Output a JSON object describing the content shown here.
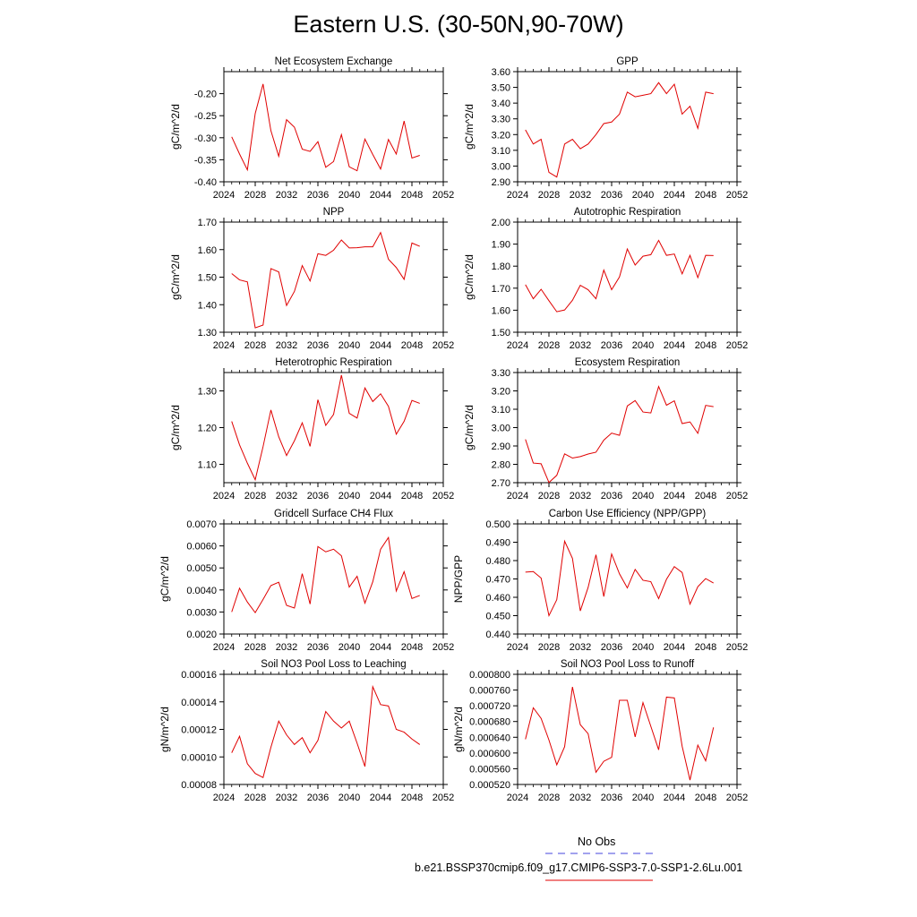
{
  "title": "Eastern U.S. (30-50N,90-70W)",
  "legend": {
    "obs_label": "No Obs",
    "obs_color": "#4444dd",
    "model_label": "b.e21.BSSP370cmip6.f09_g17.CMIP6-SSP3-7.0-SSP1-2.6Lu.001",
    "model_color": "#e00000"
  },
  "chart_data": [
    {
      "type": "line",
      "title": "Net Ecosystem Exchange",
      "ylabel": "gC/m^2/d",
      "xlim": [
        2024,
        2052
      ],
      "xticks": [
        2024,
        2028,
        2032,
        2036,
        2040,
        2044,
        2048,
        2052
      ],
      "ylim": [
        -0.4,
        -0.15
      ],
      "yticks": [
        -0.4,
        -0.35,
        -0.3,
        -0.25,
        -0.2
      ],
      "ytick_labels": [
        "-0.40",
        "-0.35",
        "-0.30",
        "-0.25",
        "-0.20"
      ],
      "x": [
        2025,
        2026,
        2027,
        2028,
        2029,
        2030,
        2031,
        2032,
        2033,
        2034,
        2035,
        2036,
        2037,
        2038,
        2039,
        2040,
        2041,
        2042,
        2043,
        2044,
        2045,
        2046,
        2047,
        2048,
        2049
      ],
      "y": [
        -0.298,
        -0.337,
        -0.373,
        -0.245,
        -0.178,
        -0.284,
        -0.342,
        -0.259,
        -0.276,
        -0.326,
        -0.331,
        -0.309,
        -0.367,
        -0.354,
        -0.293,
        -0.366,
        -0.375,
        -0.303,
        -0.338,
        -0.371,
        -0.304,
        -0.337,
        -0.262,
        -0.346,
        -0.34
      ]
    },
    {
      "type": "line",
      "title": "GPP",
      "ylabel": "gC/m^2/d",
      "xlim": [
        2024,
        2052
      ],
      "xticks": [
        2024,
        2028,
        2032,
        2036,
        2040,
        2044,
        2048,
        2052
      ],
      "ylim": [
        2.9,
        3.6
      ],
      "yticks": [
        2.9,
        3.0,
        3.1,
        3.2,
        3.3,
        3.4,
        3.5,
        3.6
      ],
      "ytick_labels": [
        "2.90",
        "3.00",
        "3.10",
        "3.20",
        "3.30",
        "3.40",
        "3.50",
        "3.60"
      ],
      "x": [
        2025,
        2026,
        2027,
        2028,
        2029,
        2030,
        2031,
        2032,
        2033,
        2034,
        2035,
        2036,
        2037,
        2038,
        2039,
        2040,
        2041,
        2042,
        2043,
        2044,
        2045,
        2046,
        2047,
        2048,
        2049
      ],
      "y": [
        3.23,
        3.14,
        3.17,
        2.96,
        2.93,
        3.14,
        3.17,
        3.11,
        3.14,
        3.2,
        3.27,
        3.28,
        3.33,
        3.47,
        3.44,
        3.45,
        3.46,
        3.53,
        3.46,
        3.52,
        3.33,
        3.38,
        3.24,
        3.47,
        3.46
      ]
    },
    {
      "type": "line",
      "title": "NPP",
      "ylabel": "gC/m^2/d",
      "xlim": [
        2024,
        2052
      ],
      "xticks": [
        2024,
        2028,
        2032,
        2036,
        2040,
        2044,
        2048,
        2052
      ],
      "ylim": [
        1.3,
        1.7
      ],
      "yticks": [
        1.3,
        1.4,
        1.5,
        1.6,
        1.7
      ],
      "ytick_labels": [
        "1.30",
        "1.40",
        "1.50",
        "1.60",
        "1.70"
      ],
      "x": [
        2025,
        2026,
        2027,
        2028,
        2029,
        2030,
        2031,
        2032,
        2033,
        2034,
        2035,
        2036,
        2037,
        2038,
        2039,
        2040,
        2041,
        2042,
        2043,
        2044,
        2045,
        2046,
        2047,
        2048,
        2049
      ],
      "y": [
        1.513,
        1.49,
        1.483,
        1.316,
        1.326,
        1.531,
        1.519,
        1.397,
        1.448,
        1.542,
        1.486,
        1.585,
        1.579,
        1.598,
        1.635,
        1.606,
        1.607,
        1.61,
        1.61,
        1.662,
        1.565,
        1.535,
        1.492,
        1.624,
        1.612
      ]
    },
    {
      "type": "line",
      "title": "Autotrophic Respiration",
      "ylabel": "gC/m^2/d",
      "xlim": [
        2024,
        2052
      ],
      "xticks": [
        2024,
        2028,
        2032,
        2036,
        2040,
        2044,
        2048,
        2052
      ],
      "ylim": [
        1.5,
        2.0
      ],
      "yticks": [
        1.5,
        1.6,
        1.7,
        1.8,
        1.9,
        2.0
      ],
      "ytick_labels": [
        "1.50",
        "1.60",
        "1.70",
        "1.80",
        "1.90",
        "2.00"
      ],
      "x": [
        2025,
        2026,
        2027,
        2028,
        2029,
        2030,
        2031,
        2032,
        2033,
        2034,
        2035,
        2036,
        2037,
        2038,
        2039,
        2040,
        2041,
        2042,
        2043,
        2044,
        2045,
        2046,
        2047,
        2048,
        2049
      ],
      "y": [
        1.716,
        1.652,
        1.695,
        1.643,
        1.593,
        1.601,
        1.645,
        1.713,
        1.693,
        1.652,
        1.782,
        1.693,
        1.751,
        1.878,
        1.805,
        1.845,
        1.852,
        1.917,
        1.849,
        1.855,
        1.765,
        1.849,
        1.748,
        1.849,
        1.848
      ]
    },
    {
      "type": "line",
      "title": "Heterotrophic Respiration",
      "ylabel": "gC/m^2/d",
      "xlim": [
        2024,
        2052
      ],
      "xticks": [
        2024,
        2028,
        2032,
        2036,
        2040,
        2044,
        2048,
        2052
      ],
      "ylim": [
        1.05,
        1.35
      ],
      "yticks": [
        1.1,
        1.2,
        1.3
      ],
      "ytick_labels": [
        "1.10",
        "1.20",
        "1.30"
      ],
      "x": [
        2025,
        2026,
        2027,
        2028,
        2029,
        2030,
        2031,
        2032,
        2033,
        2034,
        2035,
        2036,
        2037,
        2038,
        2039,
        2040,
        2041,
        2042,
        2043,
        2044,
        2045,
        2046,
        2047,
        2048,
        2049
      ],
      "y": [
        1.217,
        1.153,
        1.103,
        1.058,
        1.148,
        1.248,
        1.175,
        1.124,
        1.164,
        1.213,
        1.149,
        1.276,
        1.206,
        1.236,
        1.343,
        1.239,
        1.226,
        1.308,
        1.271,
        1.292,
        1.258,
        1.182,
        1.217,
        1.274,
        1.266
      ]
    },
    {
      "type": "line",
      "title": "Ecosystem Respiration",
      "ylabel": "gC/m^2/d",
      "xlim": [
        2024,
        2052
      ],
      "xticks": [
        2024,
        2028,
        2032,
        2036,
        2040,
        2044,
        2048,
        2052
      ],
      "ylim": [
        2.7,
        3.3
      ],
      "yticks": [
        2.7,
        2.8,
        2.9,
        3.0,
        3.1,
        3.2,
        3.3
      ],
      "ytick_labels": [
        "2.70",
        "2.80",
        "2.90",
        "3.00",
        "3.10",
        "3.20",
        "3.30"
      ],
      "x": [
        2025,
        2026,
        2027,
        2028,
        2029,
        2030,
        2031,
        2032,
        2033,
        2034,
        2035,
        2036,
        2037,
        2038,
        2039,
        2040,
        2041,
        2042,
        2043,
        2044,
        2045,
        2046,
        2047,
        2048,
        2049
      ],
      "y": [
        2.936,
        2.807,
        2.803,
        2.701,
        2.74,
        2.857,
        2.834,
        2.842,
        2.856,
        2.866,
        2.932,
        2.97,
        2.958,
        3.118,
        3.147,
        3.085,
        3.08,
        3.224,
        3.122,
        3.146,
        3.022,
        3.031,
        2.969,
        3.121,
        3.114
      ]
    },
    {
      "type": "line",
      "title": "Gridcell Surface CH4 Flux",
      "ylabel": "gC/m^2/d",
      "xlim": [
        2024,
        2052
      ],
      "xticks": [
        2024,
        2028,
        2032,
        2036,
        2040,
        2044,
        2048,
        2052
      ],
      "ylim": [
        0.002,
        0.007
      ],
      "yticks": [
        0.002,
        0.003,
        0.004,
        0.005,
        0.006,
        0.007
      ],
      "ytick_labels": [
        "0.0020",
        "0.0030",
        "0.0040",
        "0.0050",
        "0.0060",
        "0.0070"
      ],
      "x": [
        2025,
        2026,
        2027,
        2028,
        2029,
        2030,
        2031,
        2032,
        2033,
        2034,
        2035,
        2036,
        2037,
        2038,
        2039,
        2040,
        2041,
        2042,
        2043,
        2044,
        2045,
        2046,
        2047,
        2048,
        2049
      ],
      "y": [
        0.003,
        0.00408,
        0.00345,
        0.00297,
        0.00357,
        0.0042,
        0.00435,
        0.0033,
        0.00318,
        0.00474,
        0.00336,
        0.00597,
        0.00573,
        0.00585,
        0.00555,
        0.00413,
        0.00462,
        0.0034,
        0.00437,
        0.00585,
        0.00638,
        0.00395,
        0.00483,
        0.00361,
        0.00375
      ]
    },
    {
      "type": "line",
      "title": "Carbon Use Efficiency (NPP/GPP)",
      "ylabel": "NPP/GPP",
      "xlim": [
        2024,
        2052
      ],
      "xticks": [
        2024,
        2028,
        2032,
        2036,
        2040,
        2044,
        2048,
        2052
      ],
      "ylim": [
        0.44,
        0.5
      ],
      "yticks": [
        0.44,
        0.45,
        0.46,
        0.47,
        0.48,
        0.49,
        0.5
      ],
      "ytick_labels": [
        "0.440",
        "0.450",
        "0.460",
        "0.470",
        "0.480",
        "0.490",
        "0.500"
      ],
      "x": [
        2025,
        2026,
        2027,
        2028,
        2029,
        2030,
        2031,
        2032,
        2033,
        2034,
        2035,
        2036,
        2037,
        2038,
        2039,
        2040,
        2041,
        2042,
        2043,
        2044,
        2045,
        2046,
        2047,
        2048,
        2049
      ],
      "y": [
        0.4737,
        0.474,
        0.4705,
        0.45,
        0.4587,
        0.4906,
        0.4812,
        0.4526,
        0.4654,
        0.4832,
        0.4604,
        0.4836,
        0.4728,
        0.4651,
        0.4752,
        0.4693,
        0.4685,
        0.4593,
        0.4698,
        0.4767,
        0.4735,
        0.4563,
        0.4658,
        0.4702,
        0.4678
      ]
    },
    {
      "type": "line",
      "title": "Soil NO3 Pool Loss to Leaching",
      "ylabel": "gN/m^2/d",
      "xlim": [
        2024,
        2052
      ],
      "xticks": [
        2024,
        2028,
        2032,
        2036,
        2040,
        2044,
        2048,
        2052
      ],
      "ylim": [
        8e-05,
        0.00016
      ],
      "yticks": [
        8e-05,
        0.0001,
        0.00012,
        0.00014,
        0.00016
      ],
      "ytick_labels": [
        "0.00008",
        "0.00010",
        "0.00012",
        "0.00014",
        "0.00016"
      ],
      "x": [
        2025,
        2026,
        2027,
        2028,
        2029,
        2030,
        2031,
        2032,
        2033,
        2034,
        2035,
        2036,
        2037,
        2038,
        2039,
        2040,
        2041,
        2042,
        2043,
        2044,
        2045,
        2046,
        2047,
        2048,
        2049
      ],
      "y": [
        0.000103,
        0.000115,
        9.5e-05,
        8.8e-05,
        8.5e-05,
        0.000107,
        0.000126,
        0.000116,
        0.000109,
        0.000114,
        0.000103,
        0.000112,
        0.000133,
        0.000126,
        0.000121,
        0.000126,
        0.00011,
        9.3e-05,
        0.000151,
        0.000138,
        0.000137,
        0.00012,
        0.000118,
        0.000113,
        0.000109
      ]
    },
    {
      "type": "line",
      "title": "Soil NO3 Pool Loss to Runoff",
      "ylabel": "gN/m^2/d",
      "xlim": [
        2024,
        2052
      ],
      "xticks": [
        2024,
        2028,
        2032,
        2036,
        2040,
        2044,
        2048,
        2052
      ],
      "ylim": [
        0.00052,
        0.0008
      ],
      "yticks": [
        0.00052,
        0.00056,
        0.0006,
        0.00064,
        0.00068,
        0.00072,
        0.00076,
        0.0008
      ],
      "ytick_labels": [
        "0.000520",
        "0.000560",
        "0.000600",
        "0.000640",
        "0.000680",
        "0.000720",
        "0.000760",
        "0.000800"
      ],
      "x": [
        2025,
        2026,
        2027,
        2028,
        2029,
        2030,
        2031,
        2032,
        2033,
        2034,
        2035,
        2036,
        2037,
        2038,
        2039,
        2040,
        2041,
        2042,
        2043,
        2044,
        2045,
        2046,
        2047,
        2048,
        2049
      ],
      "y": [
        0.000635,
        0.000715,
        0.000688,
        0.000633,
        0.00057,
        0.000616,
        0.000768,
        0.000672,
        0.000649,
        0.000551,
        0.000579,
        0.000589,
        0.000734,
        0.000734,
        0.000641,
        0.000728,
        0.000668,
        0.000608,
        0.000742,
        0.00074,
        0.000617,
        0.000531,
        0.00062,
        0.00058,
        0.000665
      ]
    }
  ]
}
